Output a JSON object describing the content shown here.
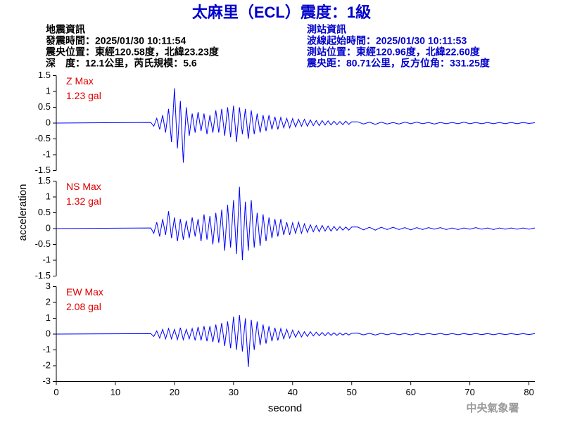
{
  "header": {
    "title": "太麻里（ECL）震度：1級",
    "left": [
      "地震資訊",
      "發震時間：2025/01/30 10:11:54",
      "震央位置：東經120.58度，北緯23.23度",
      "深　度：12.1公里，芮氏規模：5.6"
    ],
    "right": [
      "測站資訊",
      "波線起始時間：2025/01/30 10:11:53",
      "測站位置：東經120.96度，北緯22.60度",
      "震央距：80.71公里，反方位角：331.25度"
    ]
  },
  "footer": "中央氣象署",
  "chart_data": {
    "type": "line",
    "xlabel": "second",
    "ylabel": "acceleration",
    "xlim": [
      0,
      81
    ],
    "xticks": [
      0,
      10,
      20,
      30,
      40,
      50,
      60,
      70,
      80
    ],
    "x": [
      0,
      16,
      16.5,
      17,
      17.5,
      18,
      18.5,
      19,
      19.5,
      20,
      20.5,
      21,
      21.5,
      22,
      22.5,
      23,
      23.5,
      24,
      24.5,
      25,
      25.5,
      26,
      26.5,
      27,
      27.5,
      28,
      28.5,
      29,
      29.5,
      30,
      30.5,
      31,
      31.5,
      32,
      32.5,
      33,
      33.5,
      34,
      34.5,
      35,
      35.5,
      36,
      36.5,
      37,
      37.5,
      38,
      38.5,
      39,
      39.5,
      40,
      40.5,
      41,
      41.5,
      42,
      42.5,
      43,
      43.5,
      44,
      44.5,
      45,
      45.5,
      46,
      46.5,
      47,
      47.5,
      48,
      48.5,
      49,
      49.5,
      50,
      51,
      52,
      53,
      54,
      55,
      56,
      57,
      58,
      59,
      60,
      61,
      62,
      63,
      64,
      65,
      66,
      67,
      68,
      69,
      70,
      71,
      72,
      73,
      74,
      75,
      76,
      77,
      78,
      79,
      80,
      81
    ],
    "series": [
      {
        "name": "Z Max",
        "peak_label": "1.23 gal",
        "color": "#0000ff",
        "ylim": [
          -1.5,
          1.5
        ],
        "yticks": [
          1.5,
          1,
          0.5,
          0,
          -0.5,
          -1,
          -1.5
        ],
        "values": [
          0,
          0.02,
          -0.1,
          0.15,
          -0.2,
          0.25,
          -0.3,
          0.45,
          -0.6,
          1.1,
          -0.8,
          0.7,
          -1.25,
          0.5,
          -0.4,
          0.3,
          -0.3,
          0.35,
          -0.25,
          0.3,
          -0.35,
          0.25,
          -0.3,
          0.4,
          -0.3,
          0.45,
          -0.4,
          0.5,
          -0.45,
          0.55,
          -0.6,
          0.5,
          -0.35,
          0.45,
          -0.5,
          0.4,
          -0.35,
          0.3,
          -0.3,
          0.25,
          -0.25,
          0.25,
          -0.2,
          0.2,
          -0.2,
          0.18,
          -0.15,
          0.15,
          -0.15,
          0.14,
          -0.12,
          0.12,
          -0.1,
          0.12,
          -0.1,
          0.1,
          -0.08,
          0.08,
          -0.08,
          0.08,
          -0.06,
          0.07,
          -0.06,
          0.06,
          -0.05,
          0.05,
          -0.05,
          0.06,
          -0.04,
          0.04,
          0.04,
          -0.03,
          0.03,
          -0.04,
          0.03,
          -0.03,
          0.02,
          -0.03,
          0.03,
          -0.02,
          0.03,
          -0.02,
          0.02,
          -0.03,
          0.02,
          -0.02,
          0.02,
          -0.02,
          0.03,
          -0.02,
          0.02,
          -0.02,
          0.02,
          -0.02,
          0.02,
          -0.02,
          0.02,
          -0.02,
          0.02,
          -0.01,
          0.01
        ]
      },
      {
        "name": "NS Max",
        "peak_label": "1.32 gal",
        "color": "#0000ff",
        "ylim": [
          -1.5,
          1.5
        ],
        "yticks": [
          1.5,
          1,
          0.5,
          0,
          -0.5,
          -1,
          -1.5
        ],
        "values": [
          0,
          0.02,
          -0.15,
          0.2,
          -0.25,
          0.3,
          -0.2,
          0.55,
          -0.3,
          0.35,
          -0.4,
          0.3,
          -0.35,
          0.25,
          -0.3,
          0.35,
          -0.25,
          0.3,
          -0.4,
          0.45,
          -0.35,
          0.4,
          -0.5,
          0.5,
          -0.45,
          0.6,
          -0.7,
          0.75,
          -0.6,
          0.9,
          -0.8,
          1.32,
          -1.0,
          0.85,
          -0.7,
          0.9,
          -0.6,
          0.5,
          -0.55,
          0.45,
          -0.4,
          0.35,
          -0.3,
          0.3,
          -0.25,
          0.3,
          -0.2,
          0.2,
          -0.2,
          0.18,
          -0.15,
          0.2,
          -0.15,
          0.15,
          -0.12,
          0.12,
          -0.1,
          0.1,
          -0.1,
          0.1,
          -0.08,
          0.08,
          -0.08,
          0.07,
          -0.06,
          0.06,
          -0.05,
          0.05,
          -0.05,
          0.05,
          0.05,
          -0.04,
          0.04,
          -0.05,
          0.04,
          -0.03,
          0.04,
          -0.03,
          0.03,
          -0.04,
          0.03,
          -0.03,
          0.03,
          -0.02,
          0.03,
          -0.03,
          0.02,
          -0.03,
          0.02,
          -0.02,
          0.03,
          -0.02,
          0.02,
          -0.03,
          0.02,
          -0.02,
          0.02,
          -0.02,
          0.02,
          -0.02,
          0.02
        ]
      },
      {
        "name": "EW Max",
        "peak_label": "2.08 gal",
        "color": "#0000ff",
        "ylim": [
          -3,
          3
        ],
        "yticks": [
          3,
          2,
          1,
          0,
          -1,
          -2,
          -3
        ],
        "values": [
          0,
          0.03,
          -0.15,
          0.2,
          -0.25,
          0.3,
          -0.3,
          0.35,
          -0.3,
          0.3,
          -0.35,
          0.4,
          -0.35,
          0.3,
          -0.3,
          0.35,
          -0.4,
          0.45,
          -0.4,
          0.5,
          -0.45,
          0.5,
          -0.5,
          0.6,
          -0.55,
          0.7,
          -0.75,
          0.8,
          -0.9,
          1.1,
          -1.0,
          1.2,
          -1.1,
          1.0,
          -2.08,
          0.9,
          -1.0,
          0.8,
          -0.7,
          0.6,
          -0.6,
          0.5,
          -0.45,
          0.4,
          -0.4,
          0.35,
          -0.3,
          0.3,
          -0.25,
          0.25,
          -0.2,
          0.2,
          -0.18,
          0.15,
          -0.15,
          0.15,
          -0.12,
          0.12,
          -0.1,
          0.1,
          -0.1,
          0.1,
          -0.08,
          0.08,
          -0.08,
          0.07,
          -0.06,
          0.06,
          -0.06,
          0.05,
          0.06,
          -0.05,
          0.05,
          -0.06,
          0.05,
          -0.04,
          0.05,
          -0.04,
          0.04,
          -0.05,
          0.04,
          -0.04,
          0.04,
          -0.03,
          0.04,
          -0.04,
          0.03,
          -0.04,
          0.03,
          -0.03,
          0.04,
          -0.03,
          0.03,
          -0.04,
          0.03,
          -0.03,
          0.03,
          -0.03,
          0.03,
          -0.03,
          0.03
        ]
      }
    ]
  }
}
